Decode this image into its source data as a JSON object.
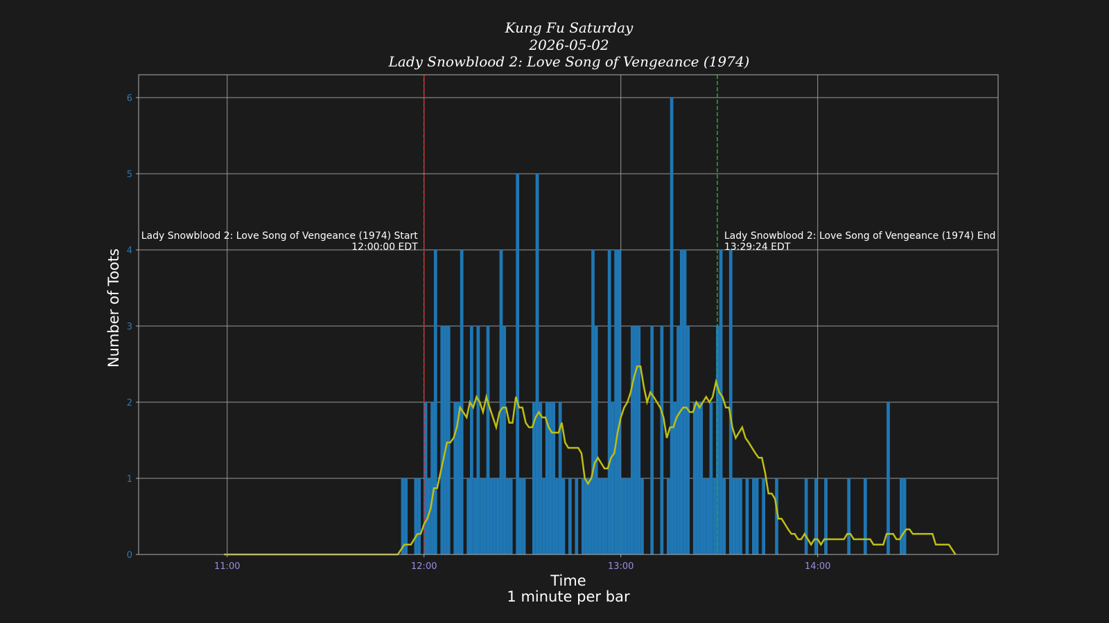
{
  "title": {
    "line1": "Kung Fu Saturday",
    "line2": "2026-05-02",
    "line3": "Lady Snowblood 2: Love Song of Vengeance (1974)"
  },
  "chart_data": {
    "type": "bar",
    "ylabel": "Number of Toots",
    "xlabel": "Time",
    "xlabel2": "1 minute per bar",
    "ylim": [
      0,
      6.3
    ],
    "yticks": [
      0,
      1,
      2,
      3,
      4,
      5,
      6
    ],
    "xlim": [
      "10:33",
      "14:55"
    ],
    "xticks": [
      "11:00",
      "12:00",
      "13:00",
      "14:00"
    ],
    "grid": true,
    "colors": {
      "bars": "#1f77b4",
      "line": "#bfbf14",
      "start": "#d62728",
      "end": "#2ca02c"
    },
    "bars": [
      {
        "t": "11:53",
        "v": 1
      },
      {
        "t": "11:54",
        "v": 1
      },
      {
        "t": "11:57",
        "v": 1
      },
      {
        "t": "11:58",
        "v": 1
      },
      {
        "t": "12:00",
        "v": 2
      },
      {
        "t": "12:01",
        "v": 1
      },
      {
        "t": "12:02",
        "v": 2
      },
      {
        "t": "12:03",
        "v": 4
      },
      {
        "t": "12:05",
        "v": 3
      },
      {
        "t": "12:06",
        "v": 3
      },
      {
        "t": "12:07",
        "v": 3
      },
      {
        "t": "12:09",
        "v": 2
      },
      {
        "t": "12:10",
        "v": 2
      },
      {
        "t": "12:11",
        "v": 4
      },
      {
        "t": "12:13",
        "v": 1
      },
      {
        "t": "12:14",
        "v": 3
      },
      {
        "t": "12:15",
        "v": 1
      },
      {
        "t": "12:16",
        "v": 3
      },
      {
        "t": "12:17",
        "v": 1
      },
      {
        "t": "12:18",
        "v": 1
      },
      {
        "t": "12:19",
        "v": 3
      },
      {
        "t": "12:20",
        "v": 1
      },
      {
        "t": "12:21",
        "v": 1
      },
      {
        "t": "12:22",
        "v": 1
      },
      {
        "t": "12:23",
        "v": 4
      },
      {
        "t": "12:24",
        "v": 3
      },
      {
        "t": "12:25",
        "v": 1
      },
      {
        "t": "12:26",
        "v": 1
      },
      {
        "t": "12:28",
        "v": 5
      },
      {
        "t": "12:29",
        "v": 1
      },
      {
        "t": "12:30",
        "v": 1
      },
      {
        "t": "12:33",
        "v": 2
      },
      {
        "t": "12:34",
        "v": 5
      },
      {
        "t": "12:35",
        "v": 2
      },
      {
        "t": "12:36",
        "v": 1
      },
      {
        "t": "12:37",
        "v": 2
      },
      {
        "t": "12:38",
        "v": 2
      },
      {
        "t": "12:39",
        "v": 2
      },
      {
        "t": "12:40",
        "v": 1
      },
      {
        "t": "12:41",
        "v": 2
      },
      {
        "t": "12:42",
        "v": 1
      },
      {
        "t": "12:44",
        "v": 1
      },
      {
        "t": "12:46",
        "v": 1
      },
      {
        "t": "12:48",
        "v": 1
      },
      {
        "t": "12:49",
        "v": 1
      },
      {
        "t": "12:50",
        "v": 1
      },
      {
        "t": "12:51",
        "v": 4
      },
      {
        "t": "12:52",
        "v": 3
      },
      {
        "t": "12:53",
        "v": 1
      },
      {
        "t": "12:54",
        "v": 1
      },
      {
        "t": "12:55",
        "v": 1
      },
      {
        "t": "12:56",
        "v": 4
      },
      {
        "t": "12:57",
        "v": 2
      },
      {
        "t": "12:58",
        "v": 4
      },
      {
        "t": "12:59",
        "v": 4
      },
      {
        "t": "13:00",
        "v": 1
      },
      {
        "t": "13:01",
        "v": 1
      },
      {
        "t": "13:02",
        "v": 1
      },
      {
        "t": "13:03",
        "v": 3
      },
      {
        "t": "13:04",
        "v": 3
      },
      {
        "t": "13:05",
        "v": 3
      },
      {
        "t": "13:06",
        "v": 1
      },
      {
        "t": "13:09",
        "v": 3
      },
      {
        "t": "13:12",
        "v": 3
      },
      {
        "t": "13:14",
        "v": 1
      },
      {
        "t": "13:15",
        "v": 6
      },
      {
        "t": "13:16",
        "v": 2
      },
      {
        "t": "13:17",
        "v": 3
      },
      {
        "t": "13:18",
        "v": 4
      },
      {
        "t": "13:19",
        "v": 4
      },
      {
        "t": "13:20",
        "v": 3
      },
      {
        "t": "13:22",
        "v": 2
      },
      {
        "t": "13:23",
        "v": 2
      },
      {
        "t": "13:24",
        "v": 2
      },
      {
        "t": "13:25",
        "v": 1
      },
      {
        "t": "13:26",
        "v": 1
      },
      {
        "t": "13:27",
        "v": 2
      },
      {
        "t": "13:28",
        "v": 1
      },
      {
        "t": "13:29",
        "v": 3
      },
      {
        "t": "13:30",
        "v": 4
      },
      {
        "t": "13:31",
        "v": 1
      },
      {
        "t": "13:33",
        "v": 4
      },
      {
        "t": "13:34",
        "v": 1
      },
      {
        "t": "13:35",
        "v": 1
      },
      {
        "t": "13:36",
        "v": 1
      },
      {
        "t": "13:38",
        "v": 1
      },
      {
        "t": "13:40",
        "v": 1
      },
      {
        "t": "13:41",
        "v": 1
      },
      {
        "t": "13:43",
        "v": 1
      },
      {
        "t": "13:47",
        "v": 1
      },
      {
        "t": "13:56",
        "v": 1
      },
      {
        "t": "13:59",
        "v": 1
      },
      {
        "t": "14:02",
        "v": 1
      },
      {
        "t": "14:09",
        "v": 1
      },
      {
        "t": "14:14",
        "v": 1
      },
      {
        "t": "14:21",
        "v": 2
      },
      {
        "t": "14:25",
        "v": 1
      },
      {
        "t": "14:26",
        "v": 1
      }
    ],
    "moving_average": [
      {
        "t": "10:59",
        "v": 0
      },
      {
        "t": "11:52",
        "v": 0
      },
      {
        "t": "11:54",
        "v": 0.13
      },
      {
        "t": "11:56",
        "v": 0.13
      },
      {
        "t": "11:58",
        "v": 0.27
      },
      {
        "t": "11:59",
        "v": 0.27
      },
      {
        "t": "12:00",
        "v": 0.4
      },
      {
        "t": "12:01",
        "v": 0.47
      },
      {
        "t": "12:02",
        "v": 0.6
      },
      {
        "t": "12:03",
        "v": 0.87
      },
      {
        "t": "12:04",
        "v": 0.87
      },
      {
        "t": "12:05",
        "v": 1.07
      },
      {
        "t": "12:06",
        "v": 1.27
      },
      {
        "t": "12:07",
        "v": 1.47
      },
      {
        "t": "12:08",
        "v": 1.47
      },
      {
        "t": "12:09",
        "v": 1.53
      },
      {
        "t": "12:10",
        "v": 1.67
      },
      {
        "t": "12:11",
        "v": 1.93
      },
      {
        "t": "12:13",
        "v": 1.8
      },
      {
        "t": "12:14",
        "v": 2
      },
      {
        "t": "12:15",
        "v": 1.93
      },
      {
        "t": "12:16",
        "v": 2.07
      },
      {
        "t": "12:17",
        "v": 2
      },
      {
        "t": "12:18",
        "v": 1.87
      },
      {
        "t": "12:19",
        "v": 2.07
      },
      {
        "t": "12:20",
        "v": 1.93
      },
      {
        "t": "12:22",
        "v": 1.67
      },
      {
        "t": "12:23",
        "v": 1.87
      },
      {
        "t": "12:24",
        "v": 1.93
      },
      {
        "t": "12:25",
        "v": 1.93
      },
      {
        "t": "12:26",
        "v": 1.73
      },
      {
        "t": "12:27",
        "v": 1.73
      },
      {
        "t": "12:28",
        "v": 2.07
      },
      {
        "t": "12:29",
        "v": 1.93
      },
      {
        "t": "12:30",
        "v": 1.93
      },
      {
        "t": "12:31",
        "v": 1.73
      },
      {
        "t": "12:32",
        "v": 1.67
      },
      {
        "t": "12:33",
        "v": 1.67
      },
      {
        "t": "12:34",
        "v": 1.8
      },
      {
        "t": "12:35",
        "v": 1.87
      },
      {
        "t": "12:36",
        "v": 1.8
      },
      {
        "t": "12:37",
        "v": 1.8
      },
      {
        "t": "12:38",
        "v": 1.67
      },
      {
        "t": "12:39",
        "v": 1.6
      },
      {
        "t": "12:40",
        "v": 1.6
      },
      {
        "t": "12:41",
        "v": 1.6
      },
      {
        "t": "12:42",
        "v": 1.73
      },
      {
        "t": "12:43",
        "v": 1.47
      },
      {
        "t": "12:44",
        "v": 1.4
      },
      {
        "t": "12:47",
        "v": 1.4
      },
      {
        "t": "12:48",
        "v": 1.33
      },
      {
        "t": "12:49",
        "v": 1
      },
      {
        "t": "12:50",
        "v": 0.93
      },
      {
        "t": "12:51",
        "v": 1
      },
      {
        "t": "12:52",
        "v": 1.2
      },
      {
        "t": "12:53",
        "v": 1.27
      },
      {
        "t": "12:54",
        "v": 1.2
      },
      {
        "t": "12:55",
        "v": 1.13
      },
      {
        "t": "12:56",
        "v": 1.13
      },
      {
        "t": "12:57",
        "v": 1.27
      },
      {
        "t": "12:58",
        "v": 1.33
      },
      {
        "t": "12:59",
        "v": 1.6
      },
      {
        "t": "13:00",
        "v": 1.8
      },
      {
        "t": "13:01",
        "v": 1.93
      },
      {
        "t": "13:02",
        "v": 2
      },
      {
        "t": "13:03",
        "v": 2.13
      },
      {
        "t": "13:04",
        "v": 2.33
      },
      {
        "t": "13:05",
        "v": 2.47
      },
      {
        "t": "13:06",
        "v": 2.47
      },
      {
        "t": "13:07",
        "v": 2.2
      },
      {
        "t": "13:08",
        "v": 2
      },
      {
        "t": "13:09",
        "v": 2.13
      },
      {
        "t": "13:10",
        "v": 2.07
      },
      {
        "t": "13:11",
        "v": 2
      },
      {
        "t": "13:12",
        "v": 1.93
      },
      {
        "t": "13:13",
        "v": 1.8
      },
      {
        "t": "13:14",
        "v": 1.53
      },
      {
        "t": "13:15",
        "v": 1.67
      },
      {
        "t": "13:16",
        "v": 1.67
      },
      {
        "t": "13:17",
        "v": 1.8
      },
      {
        "t": "13:18",
        "v": 1.87
      },
      {
        "t": "13:19",
        "v": 1.93
      },
      {
        "t": "13:20",
        "v": 1.93
      },
      {
        "t": "13:21",
        "v": 1.87
      },
      {
        "t": "13:22",
        "v": 1.87
      },
      {
        "t": "13:23",
        "v": 2
      },
      {
        "t": "13:24",
        "v": 1.93
      },
      {
        "t": "13:25",
        "v": 2
      },
      {
        "t": "13:26",
        "v": 2.07
      },
      {
        "t": "13:27",
        "v": 2
      },
      {
        "t": "13:28",
        "v": 2.07
      },
      {
        "t": "13:29",
        "v": 2.27
      },
      {
        "t": "13:30",
        "v": 2.13
      },
      {
        "t": "13:31",
        "v": 2.07
      },
      {
        "t": "13:32",
        "v": 1.93
      },
      {
        "t": "13:33",
        "v": 1.93
      },
      {
        "t": "13:34",
        "v": 1.67
      },
      {
        "t": "13:35",
        "v": 1.53
      },
      {
        "t": "13:36",
        "v": 1.6
      },
      {
        "t": "13:37",
        "v": 1.67
      },
      {
        "t": "13:38",
        "v": 1.53
      },
      {
        "t": "13:39",
        "v": 1.47
      },
      {
        "t": "13:40",
        "v": 1.4
      },
      {
        "t": "13:41",
        "v": 1.33
      },
      {
        "t": "13:42",
        "v": 1.27
      },
      {
        "t": "13:43",
        "v": 1.27
      },
      {
        "t": "13:44",
        "v": 1.07
      },
      {
        "t": "13:45",
        "v": 0.8
      },
      {
        "t": "13:46",
        "v": 0.8
      },
      {
        "t": "13:47",
        "v": 0.73
      },
      {
        "t": "13:48",
        "v": 0.47
      },
      {
        "t": "13:49",
        "v": 0.47
      },
      {
        "t": "13:50",
        "v": 0.4
      },
      {
        "t": "13:51",
        "v": 0.33
      },
      {
        "t": "13:52",
        "v": 0.27
      },
      {
        "t": "13:53",
        "v": 0.27
      },
      {
        "t": "13:54",
        "v": 0.2
      },
      {
        "t": "13:55",
        "v": 0.2
      },
      {
        "t": "13:56",
        "v": 0.27
      },
      {
        "t": "13:57",
        "v": 0.2
      },
      {
        "t": "13:58",
        "v": 0.13
      },
      {
        "t": "13:59",
        "v": 0.2
      },
      {
        "t": "14:00",
        "v": 0.2
      },
      {
        "t": "14:01",
        "v": 0.13
      },
      {
        "t": "14:02",
        "v": 0.2
      },
      {
        "t": "14:08",
        "v": 0.2
      },
      {
        "t": "14:09",
        "v": 0.27
      },
      {
        "t": "14:10",
        "v": 0.27
      },
      {
        "t": "14:11",
        "v": 0.2
      },
      {
        "t": "14:16",
        "v": 0.2
      },
      {
        "t": "14:17",
        "v": 0.13
      },
      {
        "t": "14:20",
        "v": 0.13
      },
      {
        "t": "14:21",
        "v": 0.27
      },
      {
        "t": "14:23",
        "v": 0.27
      },
      {
        "t": "14:24",
        "v": 0.2
      },
      {
        "t": "14:25",
        "v": 0.2
      },
      {
        "t": "14:26",
        "v": 0.27
      },
      {
        "t": "14:27",
        "v": 0.33
      },
      {
        "t": "14:28",
        "v": 0.33
      },
      {
        "t": "14:29",
        "v": 0.27
      },
      {
        "t": "14:35",
        "v": 0.27
      },
      {
        "t": "14:36",
        "v": 0.13
      },
      {
        "t": "14:40",
        "v": 0.13
      },
      {
        "t": "14:42",
        "v": 0
      }
    ],
    "markers": [
      {
        "t": "12:00",
        "label": "Lady Snowblood 2: Love Song of Vengeance (1974) Start",
        "time_label": "12:00:00 EDT",
        "color": "#d62728",
        "side": "left"
      },
      {
        "t": "13:29.4",
        "label": "Lady Snowblood 2: Love Song of Vengeance (1974) End",
        "time_label": "13:29:24 EDT",
        "color": "#2ca02c",
        "side": "right"
      }
    ]
  }
}
